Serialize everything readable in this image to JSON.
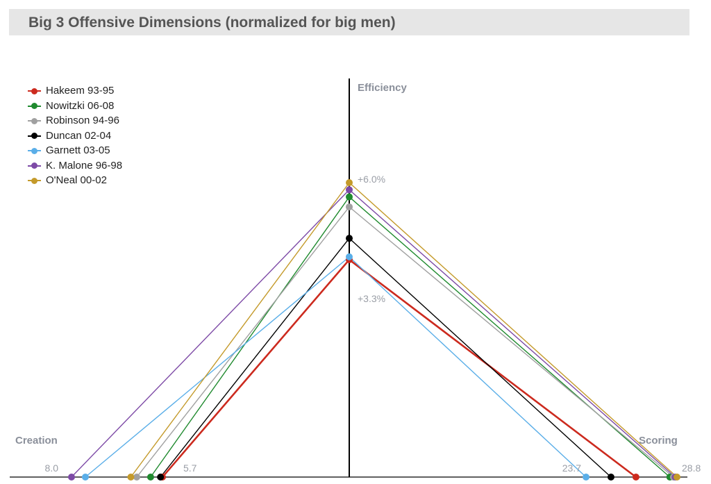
{
  "chart_data": {
    "type": "line",
    "title": "Big 3 Offensive Dimensions (normalized for big men)",
    "axes": {
      "efficiency": {
        "label": "Efficiency",
        "tick_high": "+6.0%",
        "tick_low": "+3.3%",
        "range": [
          0,
          9.4
        ]
      },
      "creation": {
        "label": "Creation",
        "tick_far": "8.0",
        "tick_near": "5.7"
      },
      "scoring": {
        "label": "Scoring",
        "tick_near": "23.7",
        "tick_far": "28.8"
      }
    },
    "series": [
      {
        "name": "Hakeem 93-95",
        "color": "#cc2a1e",
        "creation": 5.7,
        "efficiency": 3.3,
        "scoring": 26.5
      },
      {
        "name": "Nowitzki 06-08",
        "color": "#1f8a2e",
        "creation": 6.0,
        "efficiency": 5.5,
        "scoring": 28.4
      },
      {
        "name": "Robinson 94-96",
        "color": "#a0a0a0",
        "creation": 6.35,
        "efficiency": 5.15,
        "scoring": 28.6
      },
      {
        "name": "Duncan 02-04",
        "color": "#000000",
        "creation": 5.75,
        "efficiency": 4.05,
        "scoring": 25.1
      },
      {
        "name": "Garnett 03-05",
        "color": "#5aaee8",
        "creation": 7.65,
        "efficiency": 3.4,
        "scoring": 23.7
      },
      {
        "name": "K. Malone 96-98",
        "color": "#7d4aa6",
        "creation": 8.0,
        "efficiency": 5.75,
        "scoring": 28.7
      },
      {
        "name": "O'Neal 00-02",
        "color": "#c49a2a",
        "creation": 6.5,
        "efficiency": 6.0,
        "scoring": 28.8
      }
    ],
    "legend_position": "top-left",
    "grid": false
  }
}
